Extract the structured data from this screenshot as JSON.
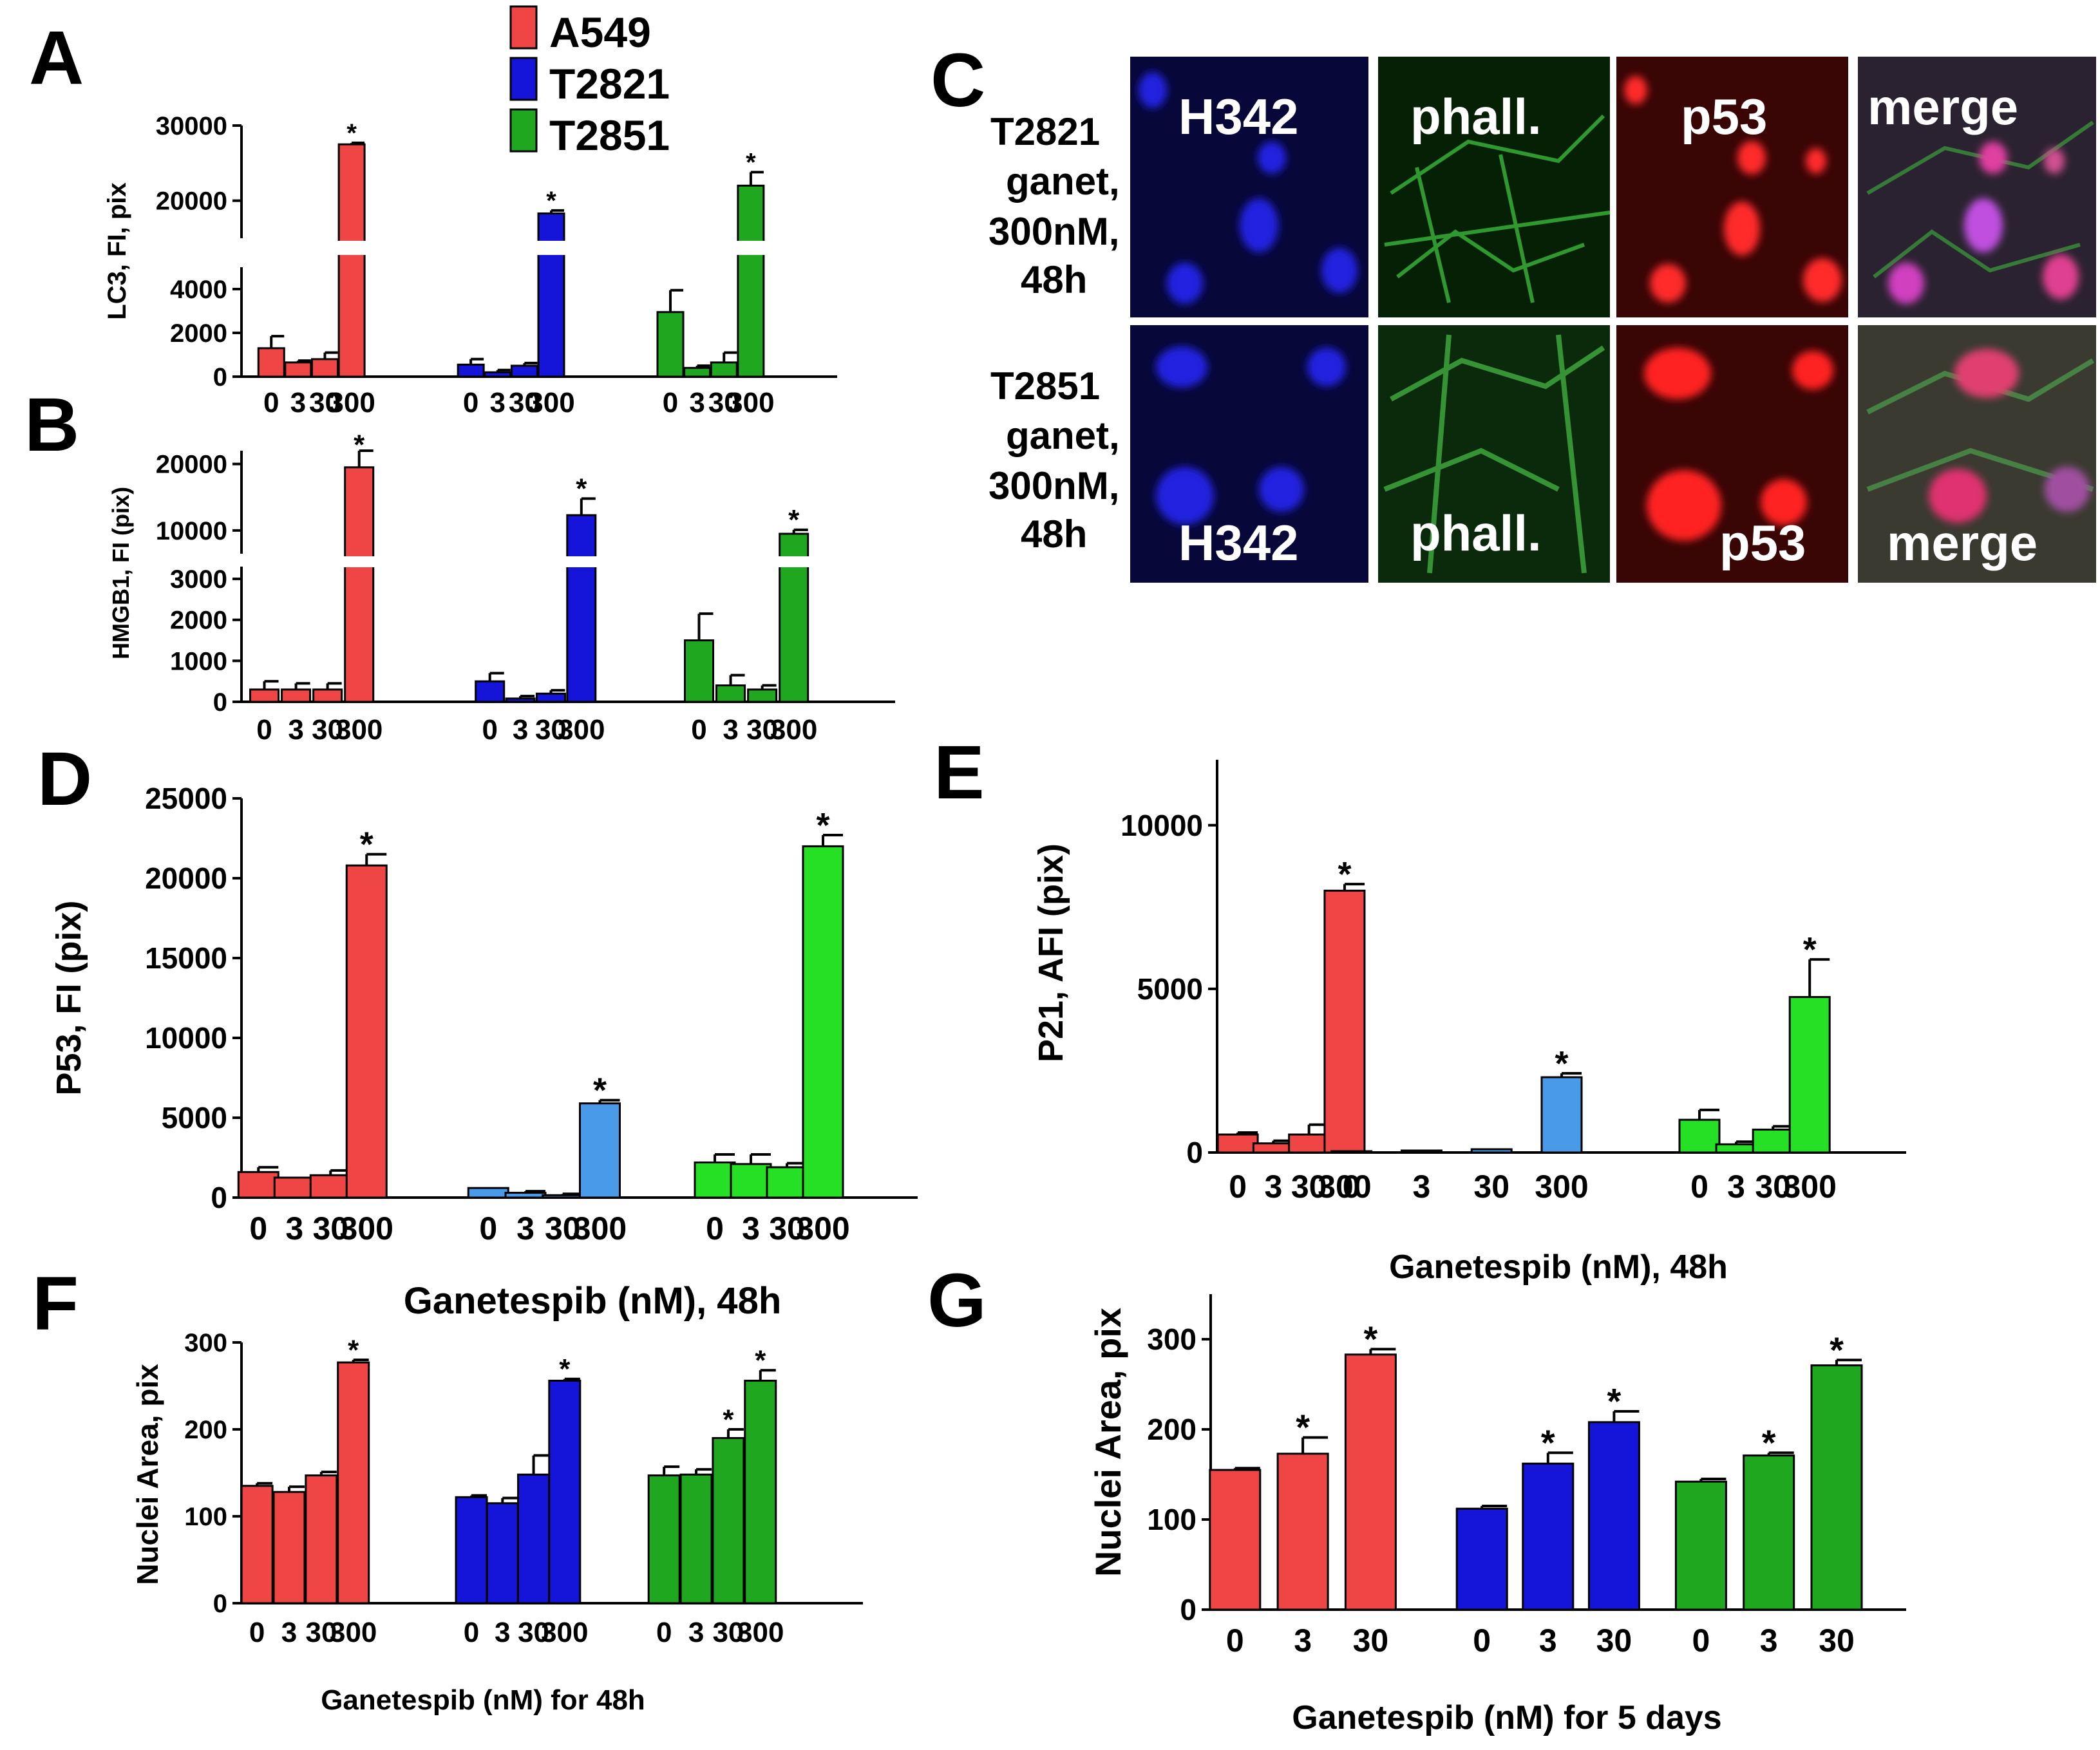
{
  "legend": [
    {
      "name": "A549",
      "color": "#f04545"
    },
    {
      "name": "T2821",
      "color": "#1515d9"
    },
    {
      "name": "T2851",
      "color": "#1fa81f"
    }
  ],
  "panel_letters": {
    "A": "A",
    "B": "B",
    "C": "C",
    "D": "D",
    "E": "E",
    "F": "F",
    "G": "G"
  },
  "panel_c": {
    "rows": [
      {
        "label_lines": [
          "T2821",
          "ganet,",
          "300nM,",
          "48h"
        ],
        "tiles": [
          {
            "label": "H342",
            "channel": "blue"
          },
          {
            "label": "phall.",
            "channel": "green"
          },
          {
            "label": "p53",
            "channel": "red"
          },
          {
            "label": "merge",
            "channel": "merge"
          }
        ]
      },
      {
        "label_lines": [
          "T2851",
          "ganet,",
          "300nM,",
          "48h"
        ],
        "tiles": [
          {
            "label": "H342",
            "channel": "blue"
          },
          {
            "label": "phall.",
            "channel": "green"
          },
          {
            "label": "p53",
            "channel": "red"
          },
          {
            "label": "merge",
            "channel": "merge"
          }
        ]
      }
    ]
  },
  "chart_data": [
    {
      "id": "A",
      "type": "bar",
      "ylabel": "LC3, FI, pix",
      "groups": [
        "A549",
        "T2821",
        "T2851"
      ],
      "group_colors": [
        "#f04545",
        "#1515d9",
        "#1fa81f"
      ],
      "categories": [
        "0",
        "3",
        "30",
        "300"
      ],
      "values": [
        [
          1300,
          650,
          800,
          27500
        ],
        [
          550,
          200,
          500,
          18300
        ],
        [
          2950,
          400,
          650,
          22000
        ]
      ],
      "errors": [
        [
          550,
          80,
          300,
          200
        ],
        [
          250,
          100,
          120,
          400
        ],
        [
          1000,
          100,
          450,
          1800
        ]
      ],
      "significant": [
        [
          false,
          false,
          false,
          true
        ],
        [
          false,
          false,
          false,
          true
        ],
        [
          false,
          false,
          false,
          true
        ]
      ],
      "y_ticks": [
        "0",
        "2000",
        "4000",
        "20000",
        "30000"
      ],
      "y_break": {
        "lower_max": 5000,
        "upper_min": 15000
      }
    },
    {
      "id": "B",
      "type": "bar",
      "ylabel": "HMGB1, FI (pix)",
      "groups": [
        "A549",
        "T2821",
        "T2851"
      ],
      "group_colors": [
        "#f04545",
        "#1515d9",
        "#1fa81f"
      ],
      "categories": [
        "0",
        "3",
        "30",
        "300"
      ],
      "values": [
        [
          300,
          300,
          300,
          19500
        ],
        [
          500,
          80,
          200,
          12300
        ],
        [
          1500,
          400,
          300,
          9500
        ]
      ],
      "errors": [
        [
          200,
          150,
          150,
          4500
        ],
        [
          200,
          60,
          80,
          2500
        ],
        [
          650,
          250,
          100,
          600
        ]
      ],
      "significant": [
        [
          false,
          false,
          false,
          true
        ],
        [
          false,
          false,
          false,
          true
        ],
        [
          false,
          false,
          false,
          true
        ]
      ],
      "y_ticks": [
        "0",
        "1000",
        "2000",
        "3000",
        "10000",
        "20000"
      ],
      "y_break": {
        "lower_max": 3300,
        "upper_min": 6500
      }
    },
    {
      "id": "D",
      "type": "bar",
      "ylabel": "P53, FI (pix)",
      "groups": [
        "A549",
        "T2821",
        "T2851"
      ],
      "group_colors": [
        "#f04545",
        "#4a9aea",
        "#26e026"
      ],
      "categories": [
        "0",
        "3",
        "30",
        "300"
      ],
      "values": [
        [
          1600,
          1250,
          1400,
          20800
        ],
        [
          600,
          300,
          150,
          5900
        ],
        [
          2200,
          2100,
          1900,
          22000
        ]
      ],
      "errors": [
        [
          300,
          0,
          300,
          700
        ],
        [
          0,
          100,
          80,
          200
        ],
        [
          500,
          600,
          250,
          700
        ]
      ],
      "significant": [
        [
          false,
          false,
          false,
          true
        ],
        [
          false,
          false,
          false,
          true
        ],
        [
          false,
          false,
          false,
          true
        ]
      ],
      "y_ticks": [
        "0",
        "5000",
        "10000",
        "15000",
        "20000",
        "25000"
      ],
      "ylim": [
        0,
        25000
      ]
    },
    {
      "id": "E",
      "type": "bar",
      "ylabel": "P21, AFI (pix)",
      "xlabel": "Ganetespib (nM), 48h",
      "groups": [
        "A549",
        "T2821",
        "T2851"
      ],
      "group_colors": [
        "#f04545",
        "#4a9aea",
        "#26e026"
      ],
      "categories": [
        "0",
        "3",
        "30",
        "300"
      ],
      "values": [
        [
          550,
          280,
          550,
          8000
        ],
        [
          40,
          60,
          100,
          2300
        ],
        [
          1000,
          250,
          700,
          4750
        ]
      ],
      "errors": [
        [
          60,
          80,
          300,
          200
        ],
        [
          0,
          0,
          0,
          120
        ],
        [
          300,
          80,
          100,
          1150
        ]
      ],
      "significant": [
        [
          false,
          false,
          false,
          true
        ],
        [
          false,
          false,
          false,
          true
        ],
        [
          false,
          false,
          false,
          true
        ]
      ],
      "y_ticks": [
        "0",
        "5000",
        "10000"
      ],
      "ylim": [
        0,
        12000
      ]
    },
    {
      "id": "F",
      "type": "bar",
      "title": "Ganetespib (nM),  48h",
      "ylabel": "Nuclei Area, pix",
      "xlabel": "Ganetespib (nM) for 48h",
      "groups": [
        "A549",
        "T2821",
        "T2851"
      ],
      "group_colors": [
        "#f04545",
        "#1515d9",
        "#1fa81f"
      ],
      "categories": [
        "0",
        "3",
        "30",
        "300"
      ],
      "values": [
        [
          135,
          128,
          147,
          277
        ],
        [
          122,
          115,
          148,
          256
        ],
        [
          147,
          148,
          190,
          256
        ]
      ],
      "errors": [
        [
          3,
          6,
          4,
          3
        ],
        [
          2,
          6,
          22,
          2
        ],
        [
          10,
          6,
          10,
          12
        ]
      ],
      "significant": [
        [
          false,
          false,
          false,
          true
        ],
        [
          false,
          false,
          false,
          true
        ],
        [
          false,
          false,
          true,
          true
        ]
      ],
      "y_ticks": [
        "0",
        "100",
        "200",
        "300"
      ],
      "ylim": [
        0,
        300
      ]
    },
    {
      "id": "G",
      "type": "bar",
      "ylabel": "Nuclei Area, pix",
      "xlabel": "Ganetespib (nM) for 5 days",
      "groups": [
        "A549",
        "T2821",
        "T2851"
      ],
      "group_colors": [
        "#f04545",
        "#1515d9",
        "#1fa81f"
      ],
      "categories": [
        "0",
        "3",
        "30"
      ],
      "values": [
        [
          155,
          173,
          283
        ],
        [
          112,
          162,
          208
        ],
        [
          142,
          171,
          271
        ]
      ],
      "errors": [
        [
          2,
          18,
          6
        ],
        [
          3,
          12,
          12
        ],
        [
          3,
          3,
          6
        ]
      ],
      "significant": [
        [
          false,
          true,
          true
        ],
        [
          false,
          true,
          true
        ],
        [
          false,
          true,
          true
        ]
      ],
      "y_ticks": [
        "0",
        "100",
        "200",
        "300"
      ],
      "ylim": [
        0,
        350
      ]
    }
  ]
}
